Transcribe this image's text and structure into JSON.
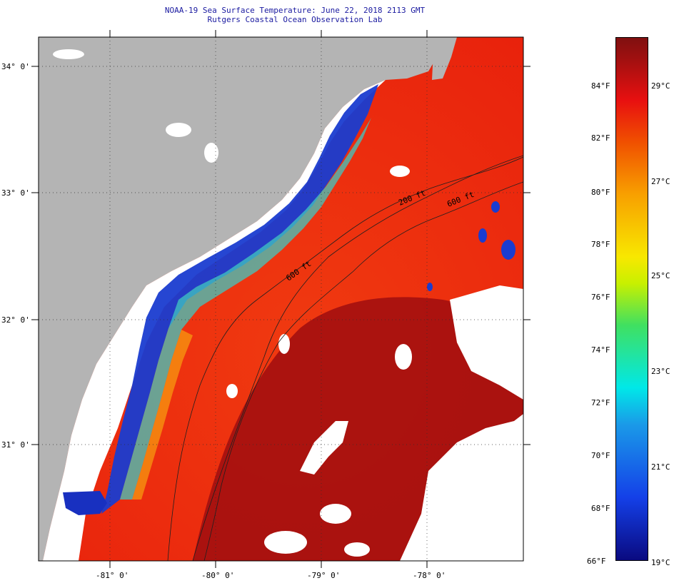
{
  "header": {
    "title": "NOAA-19 Sea Surface Temperature:  June 22, 2018 2113 GMT",
    "subtitle": "Rutgers Coastal Ocean Observation Lab"
  },
  "map": {
    "lat_labels": [
      {
        "text": "34° 0'",
        "value": 34
      },
      {
        "text": "33° 0'",
        "value": 33
      },
      {
        "text": "32° 0'",
        "value": 32
      },
      {
        "text": "31° 0'",
        "value": 31
      }
    ],
    "lon_labels": [
      {
        "text": "-81° 0'",
        "value": -81
      },
      {
        "text": "-80° 0'",
        "value": -80
      },
      {
        "text": "-79° 0'",
        "value": -79
      },
      {
        "text": "-78° 0'",
        "value": -78
      }
    ],
    "lat_range": [
      30.1,
      34.2
    ],
    "lon_range": [
      -81.6,
      -77.1
    ],
    "contour_labels": [
      "200 ft",
      "600 ft",
      "600 ft"
    ],
    "colors": {
      "land": "#b4b4b4",
      "cloud": "#ffffff",
      "warm": "#e83010",
      "hot": "#a01010",
      "cold": "#1030c8"
    }
  },
  "colorbar": {
    "fahrenheit": [
      "84°F",
      "82°F",
      "80°F",
      "78°F",
      "76°F",
      "74°F",
      "72°F",
      "70°F",
      "68°F",
      "66°F"
    ],
    "celsius": [
      "29°C",
      "27°C",
      "25°C",
      "23°C",
      "21°C",
      "19°C"
    ]
  }
}
